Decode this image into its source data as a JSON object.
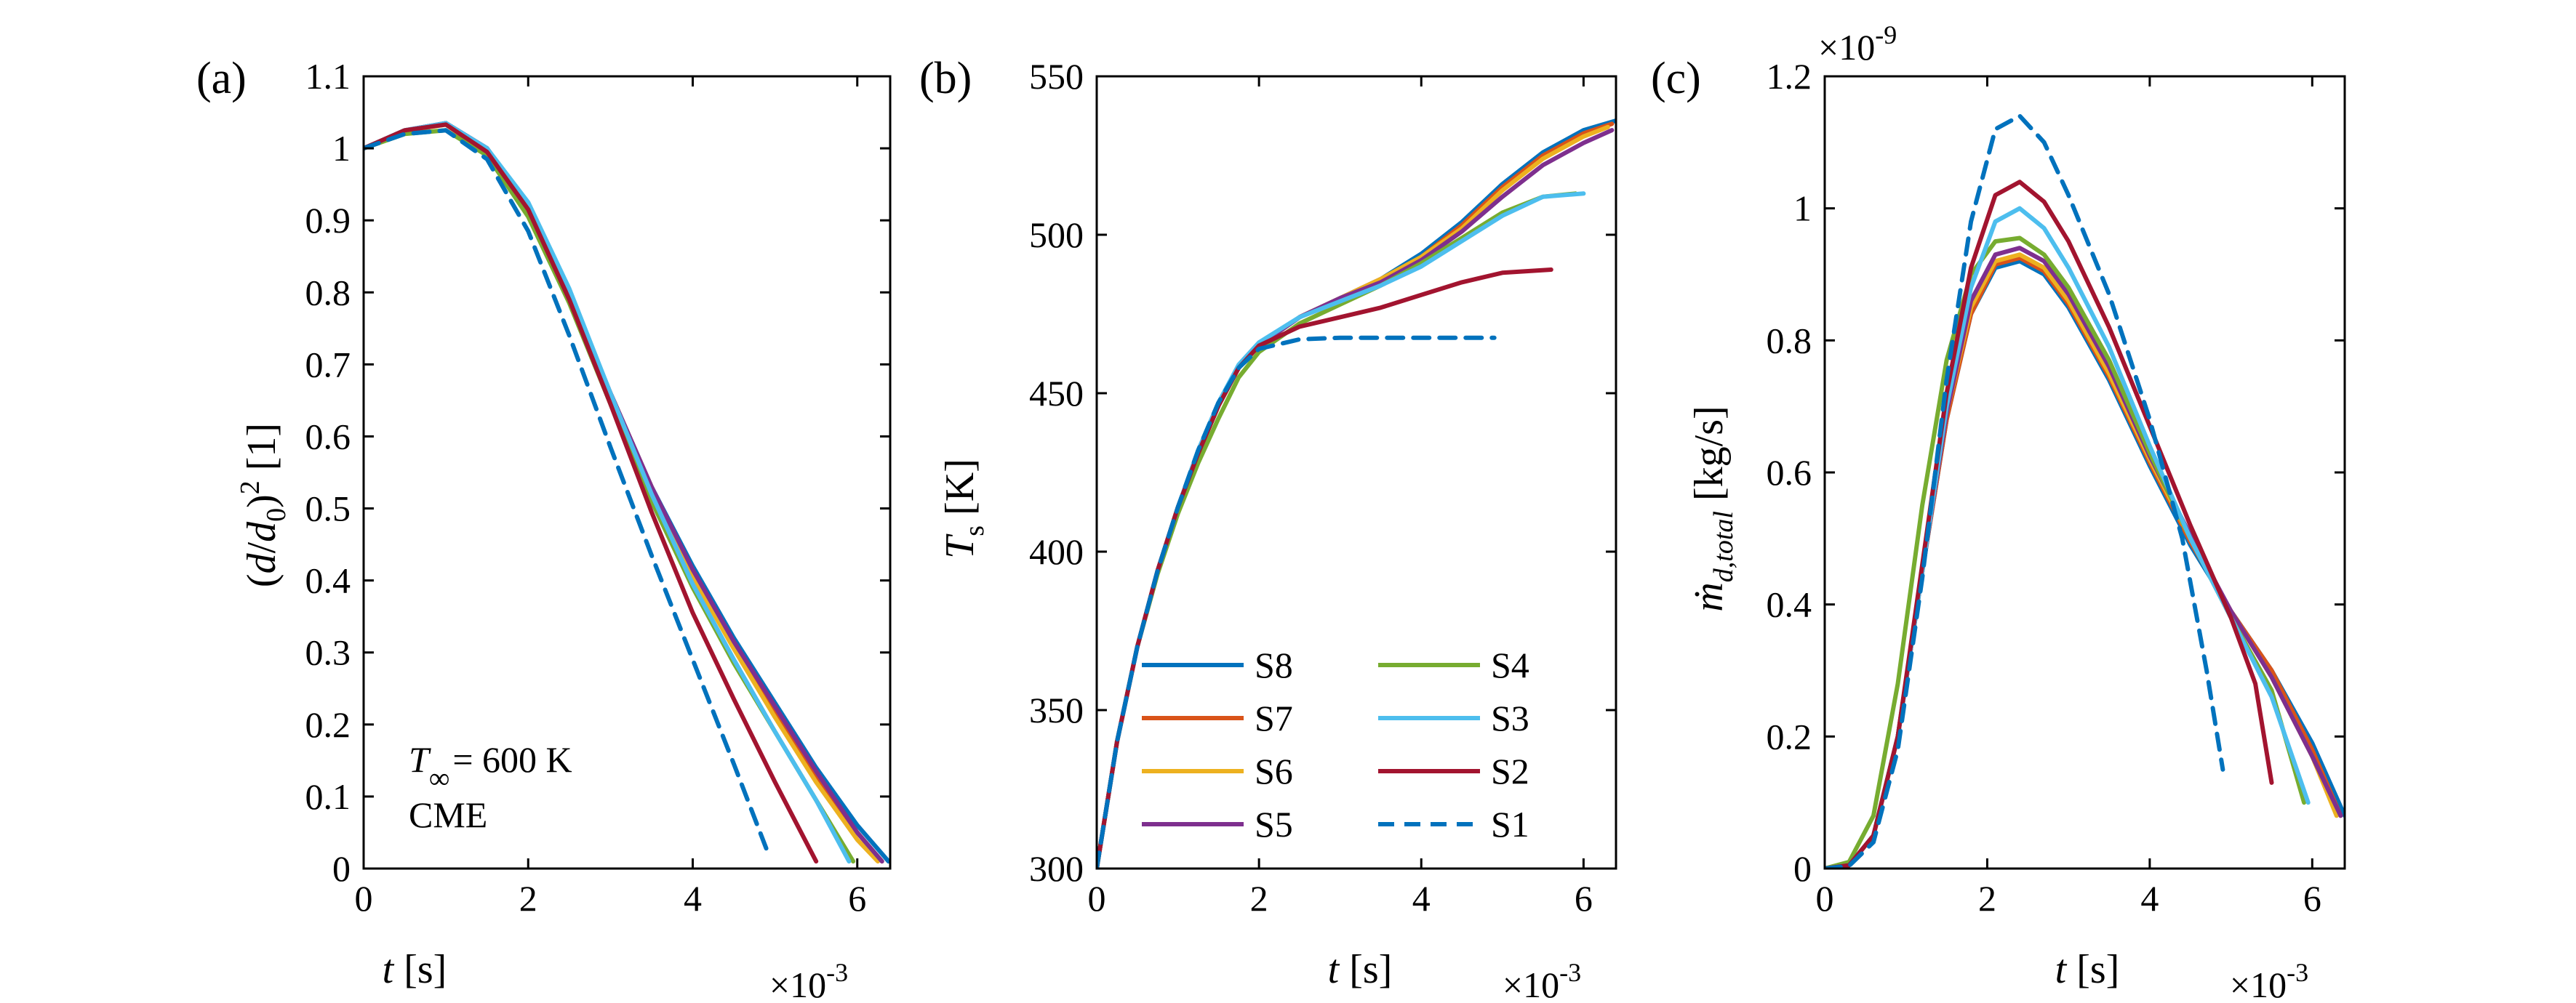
{
  "colors": {
    "S8": "#0072BD",
    "S7": "#D95319",
    "S6": "#EDB120",
    "S5": "#7E2F8E",
    "S4": "#77AC30",
    "S3": "#4DBEEE",
    "S2": "#A2142F",
    "S1": "#0072BD"
  },
  "legend": {
    "entries": [
      "S8",
      "S7",
      "S6",
      "S5",
      "S4",
      "S3",
      "S2",
      "S1"
    ]
  },
  "annotation": {
    "t_symbol": "T",
    "t_subscript": "∞",
    "t_value": "= 600 K",
    "model": "CME"
  },
  "chart_data": [
    {
      "type": "line",
      "panel": "(a)",
      "xlabel_sym": "t",
      "xlabel_unit": " [s]",
      "ylabel": "(d/d0)^2 [1]",
      "ylabel_parts": {
        "open": "(",
        "d": "d",
        "slash": "/",
        "d2": "d",
        "sub": "0",
        "close": ")",
        "sup": "2",
        "unit": " [1]"
      },
      "x_multiplier": "×10",
      "x_multiplier_exp": "-3",
      "xlim": [
        0,
        6.4
      ],
      "ylim": [
        0,
        1.1
      ],
      "xticks": [
        0,
        2,
        4,
        6
      ],
      "xtick_labels": [
        "0",
        "2",
        "4",
        "6"
      ],
      "yticks": [
        0,
        0.1,
        0.2,
        0.3,
        0.4,
        0.5,
        0.6,
        0.7,
        0.8,
        0.9,
        1,
        1.1
      ],
      "ytick_labels": [
        "0",
        "0.1",
        "0.2",
        "0.3",
        "0.4",
        "0.5",
        "0.6",
        "0.7",
        "0.8",
        "0.9",
        "1",
        "1.1"
      ],
      "series": [
        {
          "name": "S8",
          "x": [
            0,
            0.5,
            1.0,
            1.5,
            2.0,
            2.5,
            3.0,
            3.5,
            4.0,
            4.5,
            5.0,
            5.5,
            6.0,
            6.38
          ],
          "y": [
            1.0,
            1.025,
            1.035,
            1.0,
            0.92,
            0.8,
            0.66,
            0.53,
            0.42,
            0.32,
            0.23,
            0.14,
            0.06,
            0.01
          ]
        },
        {
          "name": "S7",
          "x": [
            0,
            0.5,
            1.0,
            1.5,
            2.0,
            2.5,
            3.0,
            3.5,
            4.0,
            4.5,
            5.0,
            5.5,
            6.0,
            6.3
          ],
          "y": [
            1.0,
            1.025,
            1.035,
            1.0,
            0.92,
            0.8,
            0.66,
            0.53,
            0.41,
            0.31,
            0.22,
            0.13,
            0.05,
            0.01
          ]
        },
        {
          "name": "S6",
          "x": [
            0,
            0.5,
            1.0,
            1.5,
            2.0,
            2.5,
            3.0,
            3.5,
            4.0,
            4.5,
            5.0,
            5.5,
            6.0,
            6.25
          ],
          "y": [
            1.0,
            1.024,
            1.033,
            0.995,
            0.915,
            0.795,
            0.655,
            0.525,
            0.405,
            0.305,
            0.21,
            0.12,
            0.04,
            0.01
          ]
        },
        {
          "name": "S5",
          "x": [
            0,
            0.5,
            1.0,
            1.5,
            2.0,
            2.5,
            3.0,
            3.5,
            4.0,
            4.5,
            5.0,
            5.5,
            6.0,
            6.3
          ],
          "y": [
            1.0,
            1.025,
            1.035,
            1.0,
            0.92,
            0.8,
            0.66,
            0.53,
            0.415,
            0.315,
            0.225,
            0.135,
            0.05,
            0.01
          ]
        },
        {
          "name": "S4",
          "x": [
            0,
            0.5,
            1.0,
            1.5,
            2.0,
            2.5,
            3.0,
            3.5,
            4.0,
            4.5,
            5.0,
            5.5,
            5.95
          ],
          "y": [
            1.0,
            1.02,
            1.025,
            0.99,
            0.905,
            0.785,
            0.645,
            0.51,
            0.39,
            0.285,
            0.19,
            0.095,
            0.01
          ]
        },
        {
          "name": "S3",
          "x": [
            0,
            0.5,
            1.0,
            1.5,
            2.0,
            2.5,
            3.0,
            3.5,
            4.0,
            4.5,
            5.0,
            5.5,
            5.9
          ],
          "y": [
            1.0,
            1.025,
            1.035,
            1.0,
            0.925,
            0.805,
            0.66,
            0.52,
            0.395,
            0.29,
            0.19,
            0.095,
            0.01
          ]
        },
        {
          "name": "S2",
          "x": [
            0,
            0.5,
            1.0,
            1.5,
            2.0,
            2.5,
            3.0,
            3.5,
            4.0,
            4.5,
            5.0,
            5.5
          ],
          "y": [
            1.0,
            1.025,
            1.033,
            0.995,
            0.915,
            0.79,
            0.645,
            0.495,
            0.355,
            0.235,
            0.12,
            0.01
          ]
        },
        {
          "name": "S1",
          "dashed": true,
          "x": [
            0,
            0.5,
            1.0,
            1.5,
            2.0,
            2.5,
            3.0,
            3.5,
            4.0,
            4.5,
            4.92
          ],
          "y": [
            1.0,
            1.02,
            1.025,
            0.985,
            0.885,
            0.74,
            0.585,
            0.435,
            0.29,
            0.145,
            0.02
          ]
        }
      ]
    },
    {
      "type": "line",
      "panel": "(b)",
      "xlabel_sym": "t",
      "xlabel_unit": " [s]",
      "ylabel": "Ts [K]",
      "ylabel_parts": {
        "sym": "T",
        "sub": "s",
        "unit": " [K]"
      },
      "x_multiplier": "×10",
      "x_multiplier_exp": "-3",
      "xlim": [
        0,
        6.4
      ],
      "ylim": [
        300,
        550
      ],
      "xticks": [
        0,
        2,
        4,
        6
      ],
      "xtick_labels": [
        "0",
        "2",
        "4",
        "6"
      ],
      "yticks": [
        300,
        350,
        400,
        450,
        500,
        550
      ],
      "ytick_labels": [
        "300",
        "350",
        "400",
        "450",
        "500",
        "550"
      ],
      "series": [
        {
          "name": "S8",
          "x": [
            0,
            0.25,
            0.5,
            0.75,
            1.0,
            1.25,
            1.5,
            1.75,
            2.0,
            2.5,
            3.0,
            3.5,
            4.0,
            4.5,
            5.0,
            5.5,
            6.0,
            6.4
          ],
          "y": [
            300,
            340,
            370,
            394,
            414,
            431,
            446,
            458,
            465,
            474,
            480,
            486,
            494,
            504,
            516,
            526,
            533,
            536
          ]
        },
        {
          "name": "S7",
          "x": [
            0,
            0.25,
            0.5,
            0.75,
            1.0,
            1.25,
            1.5,
            1.75,
            2.0,
            2.5,
            3.0,
            3.5,
            4.0,
            4.5,
            5.0,
            5.5,
            6.0,
            6.35
          ],
          "y": [
            300,
            340,
            370,
            394,
            414,
            431,
            446,
            458,
            465,
            474,
            480,
            486,
            493,
            503,
            515,
            525,
            532,
            535
          ]
        },
        {
          "name": "S6",
          "x": [
            0,
            0.25,
            0.5,
            0.75,
            1.0,
            1.25,
            1.5,
            1.75,
            2.0,
            2.5,
            3.0,
            3.5,
            4.0,
            4.5,
            5.0,
            5.5,
            6.0,
            6.3
          ],
          "y": [
            300,
            340,
            370,
            394,
            414,
            431,
            446,
            458,
            465,
            474,
            480,
            486,
            493,
            502,
            514,
            524,
            531,
            534
          ]
        },
        {
          "name": "S5",
          "x": [
            0,
            0.25,
            0.5,
            0.75,
            1.0,
            1.25,
            1.5,
            1.75,
            2.0,
            2.5,
            3.0,
            3.5,
            4.0,
            4.5,
            5.0,
            5.5,
            6.0,
            6.35
          ],
          "y": [
            300,
            340,
            370,
            394,
            414,
            431,
            446,
            458,
            465,
            474,
            480,
            485,
            492,
            501,
            512,
            522,
            529,
            533
          ]
        },
        {
          "name": "S4",
          "x": [
            0,
            0.25,
            0.5,
            0.75,
            1.0,
            1.25,
            1.5,
            1.75,
            2.0,
            2.5,
            3.0,
            3.5,
            4.0,
            4.5,
            5.0,
            5.5,
            5.9
          ],
          "y": [
            300,
            340,
            370,
            393,
            412,
            428,
            442,
            455,
            463,
            472,
            478,
            484,
            491,
            499,
            507,
            512,
            513
          ]
        },
        {
          "name": "S3",
          "x": [
            0,
            0.25,
            0.5,
            0.75,
            1.0,
            1.25,
            1.5,
            1.75,
            2.0,
            2.5,
            3.0,
            3.5,
            4.0,
            4.5,
            5.0,
            5.5,
            6.0
          ],
          "y": [
            300,
            340,
            370,
            394,
            414,
            432,
            447,
            459,
            466,
            474,
            479,
            484,
            490,
            498,
            506,
            512,
            513
          ]
        },
        {
          "name": "S2",
          "x": [
            0,
            0.25,
            0.5,
            0.75,
            1.0,
            1.25,
            1.5,
            1.75,
            2.0,
            2.5,
            3.0,
            3.5,
            4.0,
            4.5,
            5.0,
            5.6
          ],
          "y": [
            300,
            340,
            370,
            394,
            414,
            431,
            446,
            458,
            465,
            471,
            474,
            477,
            481,
            485,
            488,
            489
          ]
        },
        {
          "name": "S1",
          "dashed": true,
          "x": [
            0,
            0.25,
            0.5,
            0.75,
            1.0,
            1.25,
            1.5,
            1.75,
            2.0,
            2.5,
            3.0,
            3.5,
            4.0,
            4.5,
            4.9
          ],
          "y": [
            300,
            340,
            370,
            394,
            414,
            432,
            447,
            458,
            464,
            467,
            467.5,
            467.5,
            467.5,
            467.5,
            467.5
          ]
        }
      ]
    },
    {
      "type": "line",
      "panel": "(c)",
      "xlabel_sym": "t",
      "xlabel_unit": " [s]",
      "ylabel": "ṁd,total [kg/s]",
      "ylabel_parts": {
        "sym": "ṁ",
        "sub": "d,total",
        "unit": " [kg/s]"
      },
      "x_multiplier": "×10",
      "x_multiplier_exp": "-3",
      "y_multiplier": "×10",
      "y_multiplier_exp": "-9",
      "xlim": [
        0,
        6.4
      ],
      "ylim": [
        0,
        1.2
      ],
      "xticks": [
        0,
        2,
        4,
        6
      ],
      "xtick_labels": [
        "0",
        "2",
        "4",
        "6"
      ],
      "yticks": [
        0,
        0.2,
        0.4,
        0.6,
        0.8,
        1,
        1.2
      ],
      "ytick_labels": [
        "0",
        "0.2",
        "0.4",
        "0.6",
        "0.8",
        "1",
        "1.2"
      ],
      "series": [
        {
          "name": "S8",
          "x": [
            0,
            0.3,
            0.6,
            0.9,
            1.2,
            1.5,
            1.8,
            2.1,
            2.4,
            2.7,
            3.0,
            3.5,
            4.0,
            4.5,
            5.0,
            5.5,
            6.0,
            6.4
          ],
          "y": [
            0,
            0.005,
            0.05,
            0.2,
            0.45,
            0.68,
            0.84,
            0.91,
            0.92,
            0.9,
            0.85,
            0.74,
            0.61,
            0.49,
            0.39,
            0.3,
            0.19,
            0.08
          ]
        },
        {
          "name": "S7",
          "x": [
            0,
            0.3,
            0.6,
            0.9,
            1.2,
            1.5,
            1.8,
            2.1,
            2.4,
            2.7,
            3.0,
            3.5,
            4.0,
            4.5,
            5.0,
            5.5,
            6.0,
            6.35
          ],
          "y": [
            0,
            0.005,
            0.05,
            0.2,
            0.45,
            0.68,
            0.84,
            0.915,
            0.925,
            0.905,
            0.855,
            0.745,
            0.615,
            0.495,
            0.39,
            0.3,
            0.18,
            0.08
          ]
        },
        {
          "name": "S6",
          "x": [
            0,
            0.3,
            0.6,
            0.9,
            1.2,
            1.5,
            1.8,
            2.1,
            2.4,
            2.7,
            3.0,
            3.5,
            4.0,
            4.5,
            5.0,
            5.5,
            6.0,
            6.3
          ],
          "y": [
            0,
            0.005,
            0.05,
            0.2,
            0.45,
            0.69,
            0.85,
            0.92,
            0.93,
            0.91,
            0.86,
            0.75,
            0.62,
            0.5,
            0.39,
            0.29,
            0.17,
            0.08
          ]
        },
        {
          "name": "S5",
          "x": [
            0,
            0.3,
            0.6,
            0.9,
            1.2,
            1.5,
            1.8,
            2.1,
            2.4,
            2.7,
            3.0,
            3.5,
            4.0,
            4.5,
            5.0,
            5.5,
            6.0,
            6.35
          ],
          "y": [
            0,
            0.005,
            0.05,
            0.2,
            0.45,
            0.69,
            0.86,
            0.93,
            0.94,
            0.92,
            0.87,
            0.76,
            0.625,
            0.505,
            0.39,
            0.29,
            0.17,
            0.08
          ]
        },
        {
          "name": "S4",
          "x": [
            0,
            0.3,
            0.6,
            0.9,
            1.2,
            1.5,
            1.8,
            2.1,
            2.4,
            2.7,
            3.0,
            3.5,
            4.0,
            4.5,
            5.0,
            5.5,
            5.9
          ],
          "y": [
            0,
            0.01,
            0.08,
            0.28,
            0.55,
            0.77,
            0.9,
            0.95,
            0.955,
            0.93,
            0.88,
            0.77,
            0.63,
            0.5,
            0.38,
            0.27,
            0.1
          ]
        },
        {
          "name": "S3",
          "x": [
            0,
            0.3,
            0.6,
            0.9,
            1.2,
            1.5,
            1.8,
            2.1,
            2.4,
            2.7,
            3.0,
            3.5,
            4.0,
            4.5,
            5.0,
            5.5,
            5.95
          ],
          "y": [
            0,
            0.005,
            0.05,
            0.2,
            0.45,
            0.7,
            0.88,
            0.98,
            1.0,
            0.97,
            0.91,
            0.79,
            0.64,
            0.5,
            0.38,
            0.26,
            0.1
          ]
        },
        {
          "name": "S2",
          "x": [
            0,
            0.3,
            0.6,
            0.9,
            1.2,
            1.5,
            1.8,
            2.1,
            2.4,
            2.7,
            3.0,
            3.5,
            4.0,
            4.5,
            5.0,
            5.3,
            5.5
          ],
          "y": [
            0,
            0.005,
            0.05,
            0.2,
            0.46,
            0.72,
            0.91,
            1.02,
            1.04,
            1.01,
            0.95,
            0.82,
            0.67,
            0.52,
            0.38,
            0.28,
            0.13
          ]
        },
        {
          "name": "S1",
          "dashed": true,
          "x": [
            0,
            0.3,
            0.6,
            0.9,
            1.2,
            1.5,
            1.8,
            2.1,
            2.4,
            2.7,
            3.0,
            3.5,
            4.0,
            4.4,
            4.7,
            4.9
          ],
          "y": [
            0,
            0.004,
            0.04,
            0.18,
            0.44,
            0.74,
            0.98,
            1.12,
            1.14,
            1.1,
            1.02,
            0.87,
            0.68,
            0.5,
            0.3,
            0.15
          ]
        }
      ]
    }
  ]
}
